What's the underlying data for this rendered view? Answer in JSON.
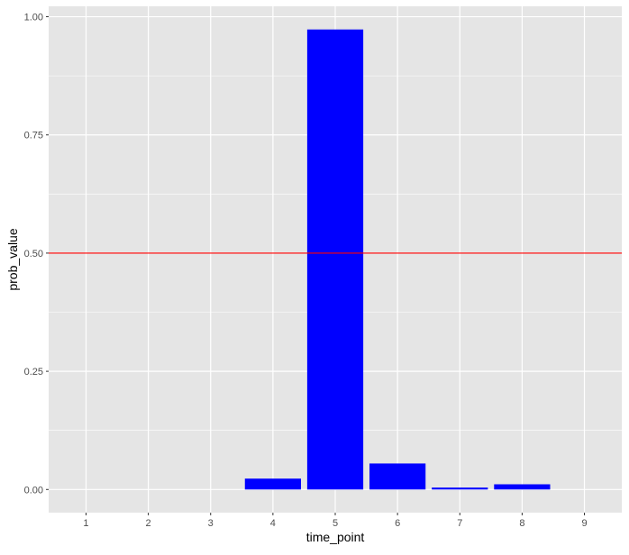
{
  "chart_data": {
    "type": "bar",
    "title": "",
    "xlabel": "time_point",
    "ylabel": "prob_value",
    "categories": [
      "1",
      "2",
      "3",
      "4",
      "5",
      "6",
      "7",
      "8",
      "9"
    ],
    "values": [
      0,
      0,
      0,
      0.023,
      0.973,
      0.055,
      0.004,
      0.011,
      0
    ],
    "ylim": [
      -0.049,
      1.022
    ],
    "yticks": [
      "0.00",
      "0.25",
      "0.50",
      "0.75",
      "1.00"
    ],
    "ytick_values": [
      0,
      0.25,
      0.5,
      0.75,
      1.0
    ],
    "hline": {
      "y": 0.5,
      "color": "#ff0000"
    },
    "bar_color": "#0000ff",
    "panel_background": "#e5e5e5",
    "grid": true,
    "legend": "none"
  }
}
